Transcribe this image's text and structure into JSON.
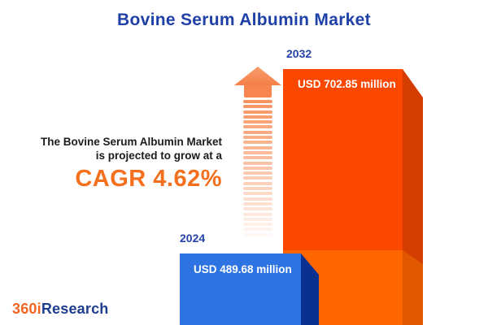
{
  "title": "Bovine Serum Albumin Market",
  "description": {
    "line1": "The Bovine Serum Albumin Market",
    "line2": "is projected to grow at a",
    "cagr": "CAGR 4.62%"
  },
  "chart_data": {
    "type": "bar",
    "title": "Bovine Serum Albumin Market",
    "categories": [
      "2024",
      "2032"
    ],
    "values": [
      489.68,
      702.85
    ],
    "unit": "USD million",
    "value_labels": [
      "USD 489.68 million",
      "USD 702.85 million"
    ],
    "cagr_percent": 4.62,
    "bar_colors": [
      "#2E73E2",
      "#FB4800"
    ],
    "legend": "none",
    "axes": "none",
    "annotations": [
      "The Bovine Serum Albumin Market is projected to grow at a CAGR 4.62%"
    ]
  },
  "bars": [
    {
      "year": "2024",
      "value_label": "USD 489.68 million"
    },
    {
      "year": "2032",
      "value_label": "USD 702.85 million"
    }
  ],
  "logo": {
    "part1": "360i",
    "part2": "Research"
  },
  "colors": {
    "title_blue": "#1F41A7",
    "cagr_orange": "#F4701F",
    "bar_2024_front": "#2E73E2",
    "bar_2024_side": "#0A3190",
    "bar_2032_front_top": "#FB4800",
    "bar_2032_front_bottom": "#FF6600",
    "bar_2032_side_top": "#D33D00",
    "bar_2032_side_bottom": "#DF5800",
    "arrow_orange": "#F6854F",
    "logo_orange": "#F26522",
    "logo_blue": "#1E3D8F",
    "background": "#FFFFFF"
  }
}
